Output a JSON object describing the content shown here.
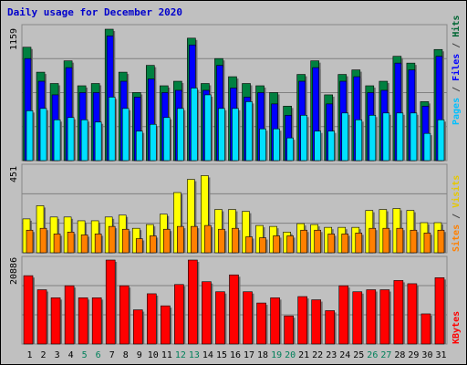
{
  "chart_data": {
    "type": "bar",
    "title": "Daily usage for December 2020",
    "categories": [
      "1",
      "2",
      "3",
      "4",
      "5",
      "6",
      "7",
      "8",
      "9",
      "10",
      "11",
      "12",
      "13",
      "14",
      "15",
      "16",
      "17",
      "18",
      "19",
      "20",
      "21",
      "22",
      "23",
      "24",
      "25",
      "26",
      "27",
      "28",
      "29",
      "30",
      "31"
    ],
    "weekend_days": [
      "5",
      "6",
      "12",
      "13",
      "19",
      "20",
      "26",
      "27"
    ],
    "panels": [
      {
        "name": "hits-files-pages",
        "ymax_label": "1159",
        "ylim": [
          0,
          1159
        ],
        "right_label": [
          "Pages",
          " / ",
          "Files",
          " / ",
          "Hits"
        ],
        "right_label_colors": [
          "#00c0ff",
          "#444444",
          "#0000ff",
          "#444444",
          "#006633"
        ],
        "series": [
          {
            "name": "Hits",
            "color": "#008040",
            "values": [
              1000,
              780,
              680,
              880,
              660,
              680,
              1159,
              780,
              600,
              840,
              660,
              700,
              1080,
              680,
              900,
              740,
              680,
              660,
              600,
              480,
              760,
              880,
              580,
              760,
              800,
              660,
              700,
              920,
              860,
              520,
              980
            ]
          },
          {
            "name": "Files",
            "color": "#0000ff",
            "values": [
              900,
              700,
              580,
              820,
              600,
              600,
              1100,
              700,
              560,
              720,
              600,
              620,
              1020,
              620,
              840,
              640,
              560,
              600,
              500,
              400,
              700,
              820,
              500,
              700,
              740,
              600,
              620,
              860,
              800,
              480,
              920
            ]
          },
          {
            "name": "Pages",
            "color": "#00e0ff",
            "values": [
              440,
              460,
              360,
              380,
              360,
              340,
              560,
              460,
              260,
              320,
              380,
              460,
              640,
              580,
              460,
              460,
              520,
              280,
              280,
              200,
              400,
              260,
              260,
              420,
              360,
              400,
              420,
              420,
              420,
              240,
              360
            ]
          }
        ]
      },
      {
        "name": "visits-sites",
        "ymax_label": "451",
        "ylim": [
          0,
          451
        ],
        "right_label": [
          "Sites",
          " / ",
          "Visits"
        ],
        "right_label_colors": [
          "#ff8000",
          "#444444",
          "#ffff00"
        ],
        "series": [
          {
            "name": "Visits",
            "color": "#ffff00",
            "values": [
              180,
              250,
              190,
              190,
              170,
              170,
              190,
              200,
              130,
              150,
              205,
              320,
              390,
              410,
              230,
              230,
              220,
              145,
              140,
              110,
              155,
              150,
              135,
              135,
              135,
              225,
              230,
              235,
              225,
              160,
              160
            ]
          },
          {
            "name": "Sites",
            "color": "#ff8000",
            "values": [
              120,
              130,
              100,
              110,
              95,
              100,
              140,
              125,
              75,
              90,
              125,
              140,
              140,
              145,
              125,
              130,
              85,
              80,
              90,
              90,
              120,
              120,
              100,
              100,
              105,
              130,
              130,
              130,
              120,
              105,
              120
            ]
          }
        ]
      },
      {
        "name": "kbytes",
        "ymax_label": "20886",
        "ylim": [
          0,
          20886
        ],
        "right_label": [
          "KBytes"
        ],
        "right_label_colors": [
          "#ff0000"
        ],
        "series": [
          {
            "name": "KBytes",
            "color": "#ff0000",
            "values": [
              17000,
              13500,
              11500,
              14500,
              11500,
              11500,
              20886,
              14500,
              8500,
              12500,
              9500,
              14800,
              20886,
              15500,
              13000,
              17200,
              13000,
              10200,
              11500,
              7000,
              11800,
              11000,
              8300,
              14500,
              13000,
              13500,
              13500,
              15800,
              15000,
              7500,
              16500
            ]
          }
        ]
      }
    ]
  }
}
